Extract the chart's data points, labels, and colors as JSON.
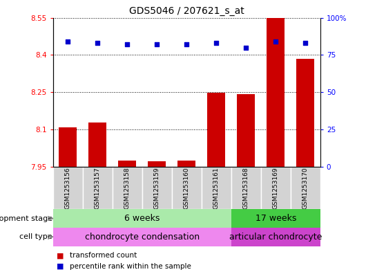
{
  "title": "GDS5046 / 207621_s_at",
  "samples": [
    "GSM1253156",
    "GSM1253157",
    "GSM1253158",
    "GSM1253159",
    "GSM1253160",
    "GSM1253161",
    "GSM1253168",
    "GSM1253169",
    "GSM1253170"
  ],
  "bar_values": [
    8.11,
    8.13,
    7.975,
    7.972,
    7.977,
    8.248,
    8.243,
    8.55,
    8.385
  ],
  "percentile_values": [
    84,
    83,
    82,
    82,
    82,
    83,
    80,
    84,
    83
  ],
  "ymin": 7.95,
  "ymax": 8.55,
  "yticks": [
    7.95,
    8.1,
    8.25,
    8.4,
    8.55
  ],
  "ytick_labels": [
    "7.95",
    "8.1",
    "8.25",
    "8.4",
    "8.55"
  ],
  "y2min": 0,
  "y2max": 100,
  "y2ticks": [
    0,
    25,
    50,
    75,
    100
  ],
  "y2tick_labels": [
    "0",
    "25",
    "50",
    "75",
    "100%"
  ],
  "bar_color": "#cc0000",
  "dot_color": "#0000cc",
  "bar_width": 0.6,
  "development_stage_label": "development stage",
  "cell_type_label": "cell type",
  "stage_groups": [
    {
      "label": "6 weeks",
      "start": 0,
      "end": 5,
      "color": "#aaeaaa"
    },
    {
      "label": "17 weeks",
      "start": 6,
      "end": 8,
      "color": "#44cc44"
    }
  ],
  "cell_groups": [
    {
      "label": "chondrocyte condensation",
      "start": 0,
      "end": 5,
      "color": "#ee88ee"
    },
    {
      "label": "articular chondrocyte",
      "start": 6,
      "end": 8,
      "color": "#cc44cc"
    }
  ],
  "legend_bar_label": "transformed count",
  "legend_dot_label": "percentile rank within the sample",
  "plot_bg_color": "#ffffff",
  "title_fontsize": 10,
  "tick_fontsize": 7.5,
  "label_fontsize": 8,
  "annotation_fontsize": 9,
  "sample_fontsize": 6.5
}
